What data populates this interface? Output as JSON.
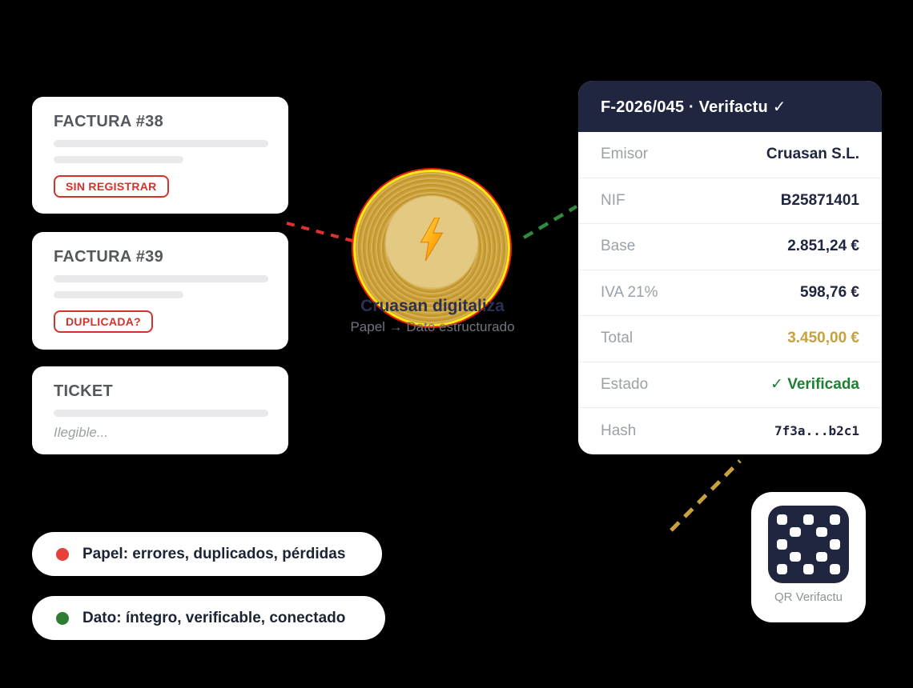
{
  "palette": {
    "background": "#000000",
    "card": "#ffffff",
    "navy": "#202540",
    "label_gray": "#9aa1a8",
    "bar_gray": "#e9e9eb",
    "alert_red": "#d5322b",
    "success_green": "#1e7e34",
    "gold": "#c7a13c"
  },
  "connectors": {
    "paper_line": "#e03131",
    "data_line": "#2f8a3e",
    "qr_line": "#c9a23f"
  },
  "documents": [
    {
      "title": "FACTURA #38",
      "badge": "SIN REGISTRAR"
    },
    {
      "title": "FACTURA #39",
      "badge": "DUPLICADA?"
    },
    {
      "title": "TICKET",
      "note": "Ilegible..."
    }
  ],
  "processor": {
    "icon": "lightning-bolt-icon",
    "title": "Cruasan digitaliza",
    "subtitle": "Papel → Dato estructurado"
  },
  "invoice": {
    "header": "F-2026/045 · Verifactu ✓",
    "rows": [
      {
        "label": "Emisor",
        "value": "Cruasan S.L.",
        "style": "navy"
      },
      {
        "label": "NIF",
        "value": "B25871401",
        "style": "navy"
      },
      {
        "label": "Base",
        "value": "2.851,24 €",
        "style": "navy"
      },
      {
        "label": "IVA 21%",
        "value": "598,76 €",
        "style": "navy"
      },
      {
        "label": "Total",
        "value": "3.450,00 €",
        "style": "gold"
      },
      {
        "label": "Estado",
        "value": "✓ Verificada",
        "style": "green"
      },
      {
        "label": "Hash",
        "value": "7f3a...b2c1",
        "style": "mono"
      }
    ]
  },
  "qr": {
    "label": "QR Verifactu",
    "grid": [
      [
        1,
        0,
        1,
        0,
        1
      ],
      [
        0,
        1,
        0,
        1,
        0
      ],
      [
        1,
        0,
        0,
        0,
        1
      ],
      [
        0,
        1,
        0,
        1,
        0
      ],
      [
        1,
        0,
        1,
        0,
        1
      ]
    ]
  },
  "legend": [
    {
      "dot_color": "#e5403c",
      "text": "Papel: errores, duplicados, pérdidas"
    },
    {
      "dot_color": "#2e7d32",
      "text": "Dato: íntegro, verificable, conectado"
    }
  ]
}
